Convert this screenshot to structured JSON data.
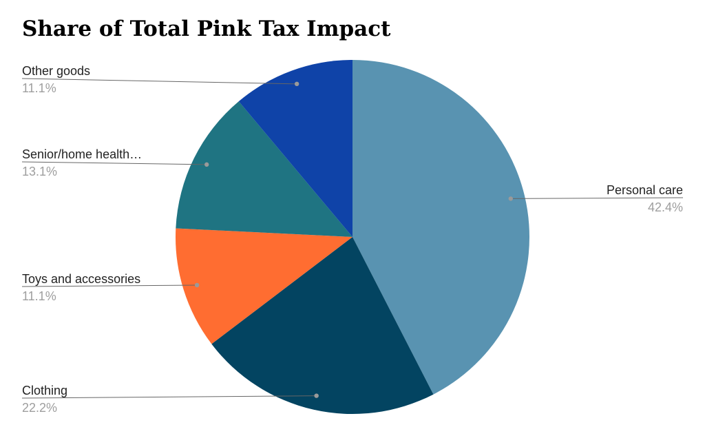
{
  "chart_data": {
    "type": "pie",
    "title": "Share of Total Pink Tax Impact",
    "slices": [
      {
        "label": "Personal care",
        "value": 42.4,
        "value_label": "42.4%",
        "color": "#5993B1"
      },
      {
        "label": "Clothing",
        "value": 22.2,
        "value_label": "22.2%",
        "color": "#034461"
      },
      {
        "label": "Toys and accessories",
        "value": 11.1,
        "value_label": "11.1%",
        "color": "#FF6D31"
      },
      {
        "label": "Senior/home health…",
        "value": 13.1,
        "value_label": "13.1%",
        "color": "#1F7482"
      },
      {
        "label": "Other goods",
        "value": 11.1,
        "value_label": "11.1%",
        "color": "#0F43A8"
      }
    ],
    "legend": "none",
    "labels_outside": true
  }
}
